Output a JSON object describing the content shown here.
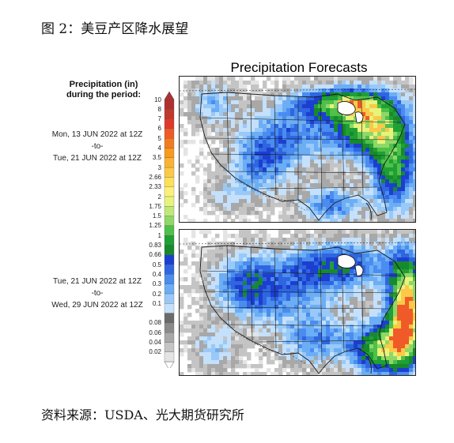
{
  "figure": {
    "caption": "图 2：美豆产区降水展望",
    "source": "资料来源：USDA、光大期货研究所"
  },
  "map": {
    "title": "Precipitation Forecasts",
    "legend_heading_line1": "Precipitation (in)",
    "legend_heading_line2": "during the period:",
    "panels": [
      {
        "start": "Mon, 13 JUN 2022 at 12Z",
        "connector": "-to-",
        "end": "Tue, 21 JUN 2022 at 12Z"
      },
      {
        "start": "Tue, 21 JUN 2022 at 12Z",
        "connector": "-to-",
        "end": "Wed, 29 JUN 2022 at 12Z"
      }
    ],
    "legend": [
      {
        "label": "10",
        "color": "#b03030"
      },
      {
        "label": "8",
        "color": "#c0392b"
      },
      {
        "label": "7",
        "color": "#e03a2a"
      },
      {
        "label": "6",
        "color": "#f05a28"
      },
      {
        "label": "5",
        "color": "#f47b20"
      },
      {
        "label": "4",
        "color": "#f79a1e"
      },
      {
        "label": "3.5",
        "color": "#f9b233"
      },
      {
        "label": "3",
        "color": "#fbc947"
      },
      {
        "label": "2.66",
        "color": "#fde05a"
      },
      {
        "label": "2.33",
        "color": "#fdf07a"
      },
      {
        "label": "2",
        "color": "#e8f37a"
      },
      {
        "label": "1.75",
        "color": "#bfe87a"
      },
      {
        "label": "1.5",
        "color": "#8fd868"
      },
      {
        "label": "1.25",
        "color": "#4fc04a"
      },
      {
        "label": "1",
        "color": "#1fa035"
      },
      {
        "label": "0.83",
        "color": "#178a2c"
      },
      {
        "label": "0.66",
        "color": "#1c3fd0"
      },
      {
        "label": "0.5",
        "color": "#2f66e0"
      },
      {
        "label": "0.4",
        "color": "#4a8cf0"
      },
      {
        "label": "0.3",
        "color": "#6caef5"
      },
      {
        "label": "0.2",
        "color": "#98c9f8"
      },
      {
        "label": "0.1",
        "color": "#c4e0fb"
      },
      {
        "label": "",
        "color": "#6a6a6a"
      },
      {
        "label": "0.08",
        "color": "#8a8a8a"
      },
      {
        "label": "0.06",
        "color": "#a8a8a8"
      },
      {
        "label": "0.04",
        "color": "#c4c4c4"
      },
      {
        "label": "0.02",
        "color": "#e4e4e4"
      }
    ]
  }
}
